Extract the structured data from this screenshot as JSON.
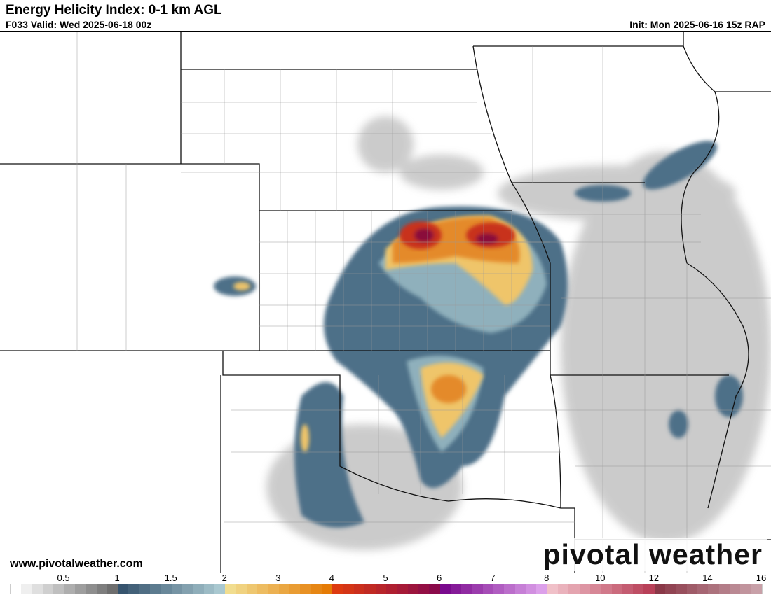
{
  "header": {
    "title": "Energy Helicity Index: 0-1 km AGL",
    "valid": "F033 Valid: Wed 2025-06-18 00z",
    "init": "Init: Mon 2025-06-16 15z RAP"
  },
  "footer": {
    "website": "www.pivotalweather.com",
    "logo": "pivotal weather"
  },
  "colorbar": {
    "ticks": [
      "0.5",
      "1",
      "1.5",
      "2",
      "3",
      "4",
      "5",
      "6",
      "7",
      "8",
      "10",
      "12",
      "14",
      "16"
    ],
    "segments": [
      {
        "from": "#ffffff",
        "to": "#6e6e6e",
        "n": 10
      },
      {
        "from": "#36546e",
        "to": "#a9c8d0",
        "n": 10
      },
      {
        "from": "#f1dd8f",
        "to": "#e57b05",
        "n": 10
      },
      {
        "from": "#dd3a10",
        "to": "#8a0a4a",
        "n": 10
      },
      {
        "from": "#7a0a8e",
        "to": "#dca0ea",
        "n": 10
      },
      {
        "from": "#f0c0c8",
        "to": "#b84058",
        "n": 10
      },
      {
        "from": "#8a3848",
        "to": "#c8a0a8",
        "n": 10
      }
    ]
  },
  "colors": {
    "gray": "#9a9a9a",
    "blue": "#4a6c86",
    "yellow": "#f0cc70",
    "orange": "#e8922a",
    "red": "#c82a1a",
    "maroon": "#8a0a3a"
  }
}
